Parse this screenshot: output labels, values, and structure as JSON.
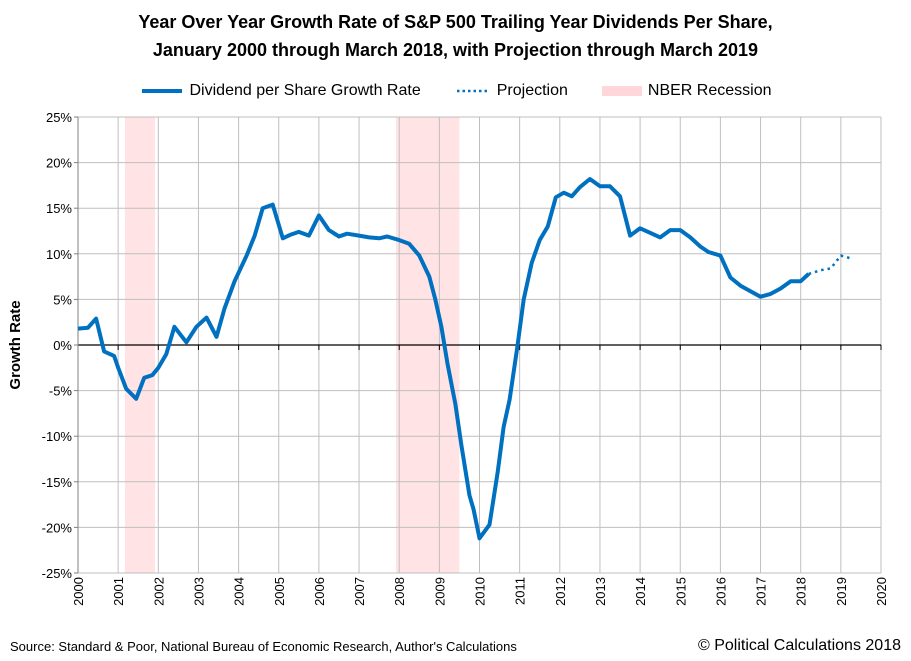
{
  "chart_data": {
    "type": "line",
    "title": [
      "Year Over Year Growth Rate of S&P 500 Trailing Year Dividends Per Share,",
      "January 2000 through March 2018, with Projection through March 2019"
    ],
    "ylabel": "Growth Rate",
    "xlabel": "",
    "xlim": [
      2000,
      2020
    ],
    "ylim": [
      -25,
      25
    ],
    "x_ticks": [
      "2000",
      "2001",
      "2002",
      "2003",
      "2004",
      "2005",
      "2006",
      "2007",
      "2008",
      "2009",
      "2010",
      "2011",
      "2012",
      "2013",
      "2014",
      "2015",
      "2016",
      "2017",
      "2018",
      "2019",
      "2020"
    ],
    "y_ticks": [
      "25%",
      "20%",
      "15%",
      "10%",
      "5%",
      "0%",
      "-5%",
      "-10%",
      "-15%",
      "-20%",
      "-25%"
    ],
    "grid": true,
    "legend_position": "top",
    "series": [
      {
        "name": "Dividend per Share Growth Rate",
        "style": "solid",
        "color": "#0070C0",
        "x": [
          2000.0,
          2000.25,
          2000.45,
          2000.65,
          2000.9,
          2001.0,
          2001.2,
          2001.45,
          2001.65,
          2001.85,
          2002.0,
          2002.2,
          2002.4,
          2002.7,
          2002.95,
          2003.2,
          2003.45,
          2003.65,
          2003.9,
          2004.2,
          2004.4,
          2004.6,
          2004.85,
          2005.1,
          2005.3,
          2005.5,
          2005.75,
          2006.0,
          2006.25,
          2006.5,
          2006.7,
          2007.0,
          2007.25,
          2007.5,
          2007.7,
          2008.0,
          2008.25,
          2008.5,
          2008.75,
          2008.9,
          2009.05,
          2009.2,
          2009.4,
          2009.55,
          2009.75,
          2009.85,
          2010.0,
          2010.25,
          2010.45,
          2010.6,
          2010.75,
          2010.95,
          2011.1,
          2011.3,
          2011.5,
          2011.7,
          2011.9,
          2012.1,
          2012.3,
          2012.5,
          2012.75,
          2013.0,
          2013.25,
          2013.5,
          2013.75,
          2014.0,
          2014.25,
          2014.5,
          2014.75,
          2015.0,
          2015.25,
          2015.5,
          2015.7,
          2016.0,
          2016.25,
          2016.5,
          2016.75,
          2017.0,
          2017.25,
          2017.5,
          2017.75,
          2018.0,
          2018.2
        ],
        "values": [
          1.8,
          1.9,
          2.9,
          -0.7,
          -1.2,
          -2.5,
          -4.8,
          -5.9,
          -3.6,
          -3.3,
          -2.5,
          -1.0,
          2.0,
          0.3,
          2.0,
          3.0,
          0.9,
          4.0,
          7.0,
          9.8,
          12.0,
          15.0,
          15.4,
          11.7,
          12.1,
          12.4,
          12.0,
          14.2,
          12.6,
          11.9,
          12.2,
          12.0,
          11.8,
          11.7,
          11.9,
          11.5,
          11.1,
          9.8,
          7.5,
          5.0,
          2.0,
          -2.0,
          -6.5,
          -11.0,
          -16.5,
          -18.0,
          -21.2,
          -19.7,
          -14.0,
          -9.0,
          -6.0,
          0.0,
          5.0,
          9.0,
          11.5,
          13.0,
          16.2,
          16.7,
          16.3,
          17.3,
          18.2,
          17.4,
          17.4,
          16.3,
          12.0,
          12.8,
          12.3,
          11.8,
          12.6,
          12.6,
          11.8,
          10.8,
          10.2,
          9.8,
          7.4,
          6.5,
          5.9,
          5.3,
          5.6,
          6.2,
          7.0,
          7.0,
          7.8
        ]
      },
      {
        "name": "Projection",
        "style": "dotted",
        "color": "#0070C0",
        "x": [
          2018.2,
          2018.5,
          2018.75,
          2019.0,
          2019.25
        ],
        "values": [
          7.8,
          8.2,
          8.4,
          9.8,
          9.5
        ]
      }
    ],
    "shaded_regions": {
      "name": "NBER Recession",
      "color": "#FFCCD0",
      "ranges": [
        [
          2001.17,
          2001.92
        ],
        [
          2007.92,
          2009.5
        ]
      ]
    }
  },
  "footer": {
    "source": "Source: Standard & Poor, National Bureau of Economic Research, Author's Calculations",
    "copyright": "© Political Calculations 2018"
  }
}
